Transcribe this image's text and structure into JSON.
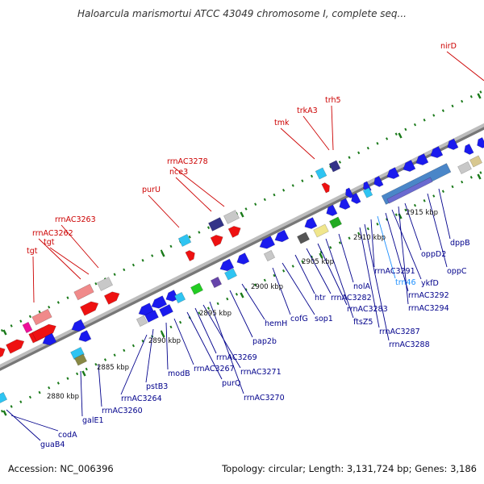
{
  "title": "Haloarcula marismortui ATCC 43049 chromosome I, complete seq...",
  "footer": {
    "accession": "Accession: NC_006396",
    "summary": "Topology: circular; Length: 3,131,724 bp; Genes: 3,186"
  },
  "colors": {
    "backbone": "#a0a0a0",
    "forward_label": "#cc0000",
    "reverse_label": "#00008b",
    "rna_label": "#1e90ff",
    "tick": "#1a7a1a",
    "cds_reverse": "#1a1aee",
    "cds_forward": "#ee1111"
  },
  "ticks": [
    {
      "label": "2880 kbp"
    },
    {
      "label": "2885 kbp"
    },
    {
      "label": "2890 kbp"
    },
    {
      "label": "2895 kbp"
    },
    {
      "label": "2900 kbp"
    },
    {
      "label": "2905 kbp"
    },
    {
      "label": "2910 kbp"
    },
    {
      "label": "2915 kbp"
    }
  ],
  "forward_labels": [
    {
      "text": "tgt"
    },
    {
      "text": "rrnAC3262"
    },
    {
      "text": "tgt"
    },
    {
      "text": "rrnAC3263"
    },
    {
      "text": "purU"
    },
    {
      "text": "nce3"
    },
    {
      "text": "rrnAC3278"
    },
    {
      "text": "tmk"
    },
    {
      "text": "trkA3"
    },
    {
      "text": "trh5"
    },
    {
      "text": "nirD"
    }
  ],
  "reverse_labels": [
    {
      "text": "guaB4"
    },
    {
      "text": "codA"
    },
    {
      "text": "galE1"
    },
    {
      "text": "rrnAC3260"
    },
    {
      "text": "rrnAC3264"
    },
    {
      "text": "pstB3"
    },
    {
      "text": "modB"
    },
    {
      "text": "rrnAC3267"
    },
    {
      "text": "purQ"
    },
    {
      "text": "rrnAC3269"
    },
    {
      "text": "rrnAC3271"
    },
    {
      "text": "rrnAC3270"
    },
    {
      "text": "pap2b"
    },
    {
      "text": "hemH"
    },
    {
      "text": "cofG"
    },
    {
      "text": "sop1"
    },
    {
      "text": "htr"
    },
    {
      "text": "rrnAC3282"
    },
    {
      "text": "rrnAC3283"
    },
    {
      "text": "ftsZ5"
    },
    {
      "text": "nolA"
    },
    {
      "text": "rrnAC3287"
    },
    {
      "text": "rrnAC3288"
    },
    {
      "text": "rrnAC3291"
    },
    {
      "text": "trn46"
    },
    {
      "text": "rrnAC3292"
    },
    {
      "text": "ykfD"
    },
    {
      "text": "rrnAC3294"
    },
    {
      "text": "oppD2"
    },
    {
      "text": "oppC"
    },
    {
      "text": "dppB"
    }
  ]
}
